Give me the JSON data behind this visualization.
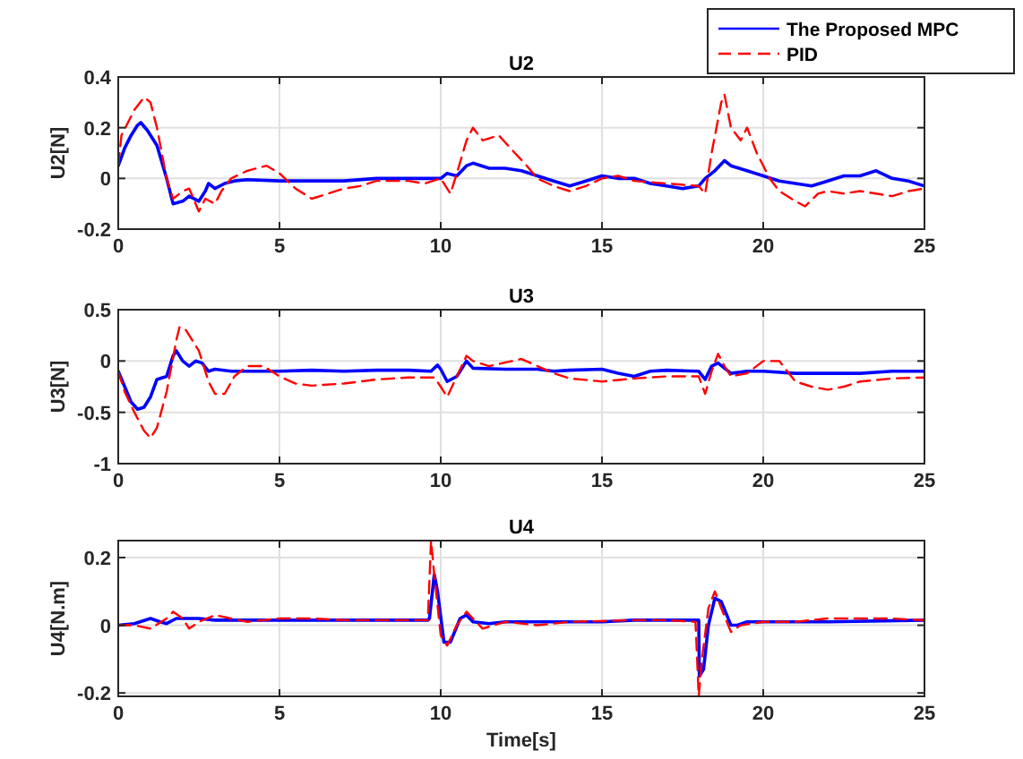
{
  "chart_data": [
    {
      "type": "line",
      "title": "U2",
      "ylabel": "U2[N]",
      "xlim": [
        0,
        25
      ],
      "xticks": [
        0,
        5,
        10,
        15,
        20,
        25
      ],
      "ylim": [
        -0.2,
        0.4
      ],
      "yticks": [
        -0.2,
        0,
        0.2,
        0.4
      ],
      "grid": true,
      "legend": "top right",
      "series": [
        {
          "name": "The Proposed MPC",
          "color": "#0000ff",
          "line_style": "solid",
          "x": [
            0,
            0.2,
            0.4,
            0.6,
            0.7,
            0.9,
            1.2,
            1.5,
            1.7,
            2,
            2.2,
            2.5,
            2.7,
            2.8,
            3,
            3.3,
            3.6,
            4,
            5,
            6,
            7,
            8,
            9,
            10,
            10.2,
            10.5,
            10.8,
            11,
            11.5,
            12,
            12.5,
            13,
            13.5,
            14,
            14.5,
            15,
            15.5,
            16,
            16.5,
            17,
            17.5,
            18,
            18.2,
            18.5,
            18.8,
            19,
            19.5,
            20,
            20.5,
            21,
            21.5,
            22,
            22.5,
            23,
            23.5,
            24,
            24.5,
            25
          ],
          "values": [
            0.05,
            0.12,
            0.17,
            0.21,
            0.22,
            0.19,
            0.13,
            0,
            -0.1,
            -0.09,
            -0.07,
            -0.09,
            -0.05,
            -0.02,
            -0.04,
            -0.02,
            -0.01,
            -0.005,
            -0.01,
            -0.01,
            -0.01,
            0,
            0,
            0,
            0.02,
            0.01,
            0.05,
            0.06,
            0.04,
            0.04,
            0.03,
            0.01,
            -0.01,
            -0.03,
            -0.01,
            0.01,
            0,
            0,
            -0.02,
            -0.03,
            -0.04,
            -0.03,
            0,
            0.03,
            0.07,
            0.05,
            0.03,
            0.01,
            -0.01,
            -0.02,
            -0.03,
            -0.01,
            0.01,
            0.01,
            0.03,
            0,
            -0.01,
            -0.03
          ]
        },
        {
          "name": "PID",
          "color": "#ff0000",
          "line_style": "dashed",
          "x": [
            0,
            0.1,
            0.3,
            0.5,
            0.8,
            1,
            1.2,
            1.5,
            1.7,
            2,
            2.2,
            2.5,
            2.7,
            3,
            3.2,
            3.5,
            4,
            4.6,
            5,
            5.5,
            6,
            6.5,
            7,
            7.5,
            8,
            9,
            9.5,
            10,
            10.3,
            10.5,
            10.8,
            11,
            11.3,
            11.8,
            12.3,
            12.6,
            13,
            13.5,
            14,
            14.5,
            15,
            15.5,
            16,
            17,
            18,
            18.2,
            18.4,
            18.7,
            18.8,
            19,
            19.3,
            19.5,
            19.8,
            20.2,
            20.5,
            21,
            21.3,
            21.7,
            22,
            22.5,
            23,
            24,
            24.5,
            25
          ],
          "values": [
            0.05,
            0.17,
            0.22,
            0.27,
            0.32,
            0.3,
            0.2,
            0,
            -0.08,
            -0.05,
            -0.04,
            -0.13,
            -0.08,
            -0.1,
            -0.05,
            0,
            0.03,
            0.05,
            0.02,
            -0.04,
            -0.08,
            -0.06,
            -0.04,
            -0.03,
            -0.01,
            -0.01,
            -0.02,
            0,
            -0.06,
            0.02,
            0.15,
            0.2,
            0.15,
            0.17,
            0.1,
            0.06,
            0,
            -0.03,
            -0.05,
            -0.03,
            0,
            0.01,
            -0.01,
            -0.02,
            -0.03,
            -0.06,
            0.1,
            0.3,
            0.33,
            0.2,
            0.15,
            0.2,
            0.1,
            0,
            -0.05,
            -0.09,
            -0.11,
            -0.06,
            -0.05,
            -0.06,
            -0.05,
            -0.07,
            -0.05,
            -0.04
          ]
        }
      ]
    },
    {
      "type": "line",
      "title": "U3",
      "ylabel": "U3[N]",
      "xlim": [
        0,
        25
      ],
      "xticks": [
        0,
        5,
        10,
        15,
        20,
        25
      ],
      "ylim": [
        -1,
        0.5
      ],
      "yticks": [
        -1,
        -0.5,
        0,
        0.5
      ],
      "grid": true,
      "series": [
        {
          "color": "#0000ff",
          "line_style": "solid",
          "x": [
            0,
            0.2,
            0.4,
            0.6,
            0.8,
            1,
            1.2,
            1.5,
            1.7,
            1.8,
            2,
            2.2,
            2.4,
            2.6,
            2.8,
            3,
            3.5,
            4,
            5,
            6,
            7,
            8,
            9,
            9.7,
            9.9,
            10,
            10.2,
            10.5,
            10.7,
            10.8,
            11,
            12,
            13,
            13.5,
            14,
            15,
            15.5,
            16,
            16.5,
            17,
            18,
            18.2,
            18.4,
            18.6,
            19,
            19.5,
            20,
            21,
            22,
            23,
            24,
            25
          ],
          "values": [
            -0.1,
            -0.25,
            -0.4,
            -0.47,
            -0.45,
            -0.35,
            -0.18,
            -0.15,
            0.05,
            0.1,
            0,
            -0.05,
            0,
            -0.02,
            -0.1,
            -0.08,
            -0.1,
            -0.1,
            -0.1,
            -0.09,
            -0.1,
            -0.09,
            -0.09,
            -0.1,
            -0.04,
            -0.08,
            -0.2,
            -0.15,
            -0.05,
            0,
            -0.07,
            -0.08,
            -0.08,
            -0.1,
            -0.09,
            -0.08,
            -0.12,
            -0.15,
            -0.1,
            -0.09,
            -0.1,
            -0.18,
            -0.05,
            -0.02,
            -0.12,
            -0.1,
            -0.1,
            -0.12,
            -0.12,
            -0.12,
            -0.1,
            -0.1
          ]
        },
        {
          "color": "#ff0000",
          "line_style": "dashed",
          "x": [
            0,
            0.2,
            0.5,
            0.8,
            1,
            1.2,
            1.5,
            1.8,
            1.9,
            2.1,
            2.5,
            2.8,
            3,
            3.3,
            3.6,
            4,
            4.5,
            5,
            5.5,
            6,
            7,
            8,
            9,
            9.8,
            10,
            10.2,
            10.5,
            10.8,
            11,
            11.5,
            12.5,
            13,
            13.5,
            14,
            15,
            16,
            17,
            18,
            18.2,
            18.4,
            18.6,
            18.8,
            19,
            19.5,
            20,
            20.5,
            21,
            21.5,
            22,
            22.5,
            23,
            24,
            25
          ],
          "values": [
            -0.1,
            -0.3,
            -0.5,
            -0.68,
            -0.75,
            -0.65,
            -0.3,
            0.2,
            0.33,
            0.3,
            0.1,
            -0.2,
            -0.32,
            -0.32,
            -0.15,
            -0.05,
            -0.05,
            -0.15,
            -0.22,
            -0.24,
            -0.22,
            -0.18,
            -0.16,
            -0.16,
            -0.25,
            -0.35,
            -0.15,
            0.05,
            0,
            -0.05,
            0.02,
            -0.05,
            -0.12,
            -0.17,
            -0.2,
            -0.17,
            -0.15,
            -0.15,
            -0.32,
            -0.1,
            0.07,
            -0.05,
            -0.15,
            -0.12,
            0,
            0,
            -0.2,
            -0.25,
            -0.28,
            -0.25,
            -0.2,
            -0.17,
            -0.16
          ]
        }
      ]
    },
    {
      "type": "line",
      "title": "U4",
      "xlabel": "Time[s]",
      "ylabel": "U4[N.m]",
      "xlim": [
        0,
        25
      ],
      "xticks": [
        0,
        5,
        10,
        15,
        20,
        25
      ],
      "ylim": [
        -0.21,
        0.25
      ],
      "yticks": [
        -0.2,
        0,
        0.2
      ],
      "grid": true,
      "series": [
        {
          "color": "#0000ff",
          "line_style": "solid",
          "x": [
            0,
            0.5,
            1,
            1.3,
            1.5,
            1.8,
            2.5,
            3,
            5,
            8,
            9.6,
            9.65,
            9.8,
            9.9,
            10.1,
            10.3,
            10.6,
            10.8,
            11,
            11.5,
            12,
            13,
            15,
            16,
            17,
            18,
            18.02,
            18.15,
            18.3,
            18.5,
            18.7,
            19,
            19.2,
            19.5,
            20,
            22,
            25
          ],
          "values": [
            0,
            0.005,
            0.02,
            0.01,
            0.005,
            0.02,
            0.02,
            0.015,
            0.015,
            0.015,
            0.015,
            0.02,
            0.15,
            0.1,
            -0.05,
            -0.05,
            0.02,
            0.03,
            0.01,
            0.005,
            0.01,
            0.01,
            0.01,
            0.015,
            0.015,
            0.015,
            -0.15,
            -0.13,
            0,
            0.08,
            0.07,
            0,
            0,
            0.01,
            0.01,
            0.01,
            0.015
          ]
        },
        {
          "color": "#ff0000",
          "line_style": "dashed",
          "x": [
            0,
            0.5,
            1,
            1.5,
            1.7,
            2,
            2.2,
            2.5,
            3,
            3.5,
            4,
            5,
            6,
            7,
            9.6,
            9.7,
            9.8,
            10,
            10.2,
            10.5,
            10.8,
            11,
            11.3,
            12,
            13,
            14,
            16,
            17,
            17.9,
            18,
            18.1,
            18.3,
            18.5,
            18.7,
            19,
            19.3,
            20,
            21,
            22,
            24,
            25
          ],
          "values": [
            0,
            0,
            -0.01,
            0.02,
            0.04,
            0.02,
            -0.01,
            0.01,
            0.03,
            0.02,
            0.01,
            0.02,
            0.02,
            0.015,
            0.015,
            0.25,
            0.15,
            -0.03,
            -0.06,
            0,
            0.04,
            0.02,
            -0.01,
            0.01,
            0,
            0.01,
            0.015,
            0.015,
            0.01,
            -0.21,
            -0.1,
            0.05,
            0.1,
            0.05,
            -0.02,
            0,
            0.01,
            0.01,
            0.02,
            0.02,
            0.015
          ]
        }
      ]
    }
  ]
}
